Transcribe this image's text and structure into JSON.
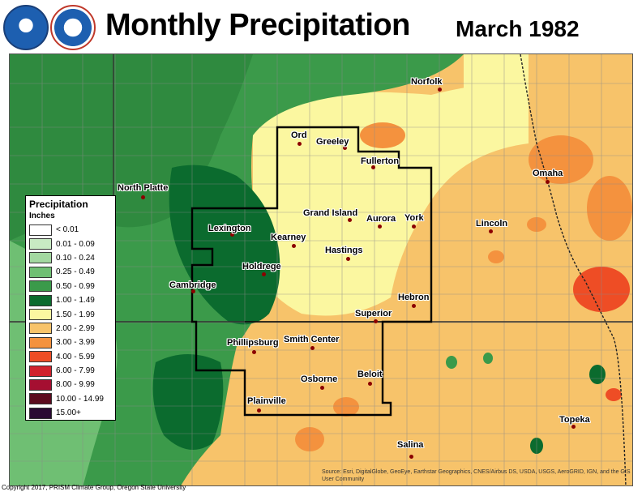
{
  "header": {
    "title": "Monthly Precipitation",
    "period": "March 1982"
  },
  "logos": {
    "left_icon": "noaa-logo",
    "right_icon": "nws-logo"
  },
  "legend": {
    "title": "Precipitation",
    "units": "Inches",
    "entries": [
      {
        "label": "< 0.01",
        "color": "#ffffff"
      },
      {
        "label": "0.01 - 0.09",
        "color": "#c8eac3"
      },
      {
        "label": "0.10 - 0.24",
        "color": "#a3d8a0"
      },
      {
        "label": "0.25 - 0.49",
        "color": "#6fbf73"
      },
      {
        "label": "0.50 - 0.99",
        "color": "#3b9a4a"
      },
      {
        "label": "1.00 - 1.49",
        "color": "#0b6b2e"
      },
      {
        "label": "1.50 - 1.99",
        "color": "#fbf7a0"
      },
      {
        "label": "2.00 - 2.99",
        "color": "#f7c36a"
      },
      {
        "label": "3.00 - 3.99",
        "color": "#f4923e"
      },
      {
        "label": "4.00 - 5.99",
        "color": "#ee4d25"
      },
      {
        "label": "6.00 - 7.99",
        "color": "#d0222c"
      },
      {
        "label": "8.00 - 9.99",
        "color": "#a50f31"
      },
      {
        "label": "10.00 - 14.99",
        "color": "#5c0b1f"
      },
      {
        "label": "15.00+",
        "color": "#2a0a33"
      }
    ]
  },
  "cities": [
    {
      "name": "Norfolk"
    },
    {
      "name": "Ord"
    },
    {
      "name": "Greeley"
    },
    {
      "name": "Fullerton"
    },
    {
      "name": "North Platte"
    },
    {
      "name": "Omaha"
    },
    {
      "name": "Grand Island"
    },
    {
      "name": "Aurora"
    },
    {
      "name": "York"
    },
    {
      "name": "Lincoln"
    },
    {
      "name": "Lexington"
    },
    {
      "name": "Kearney"
    },
    {
      "name": "Hastings"
    },
    {
      "name": "Holdrege"
    },
    {
      "name": "Cambridge"
    },
    {
      "name": "Hebron"
    },
    {
      "name": "Superior"
    },
    {
      "name": "Phillipsburg"
    },
    {
      "name": "Smith Center"
    },
    {
      "name": "Beloit"
    },
    {
      "name": "Osborne"
    },
    {
      "name": "Plainville"
    },
    {
      "name": "Topeka"
    },
    {
      "name": "Salina"
    }
  ],
  "footer": {
    "copyright": "Copyright 2017, PRISM Climate Group, Oregon State University",
    "credits": "Source: Esri, DigitalGlobe, GeoEye, Earthstar Geographics, CNES/Airbus DS, USDA, USGS, AeroGRID, IGN, and the GIS User Community"
  }
}
